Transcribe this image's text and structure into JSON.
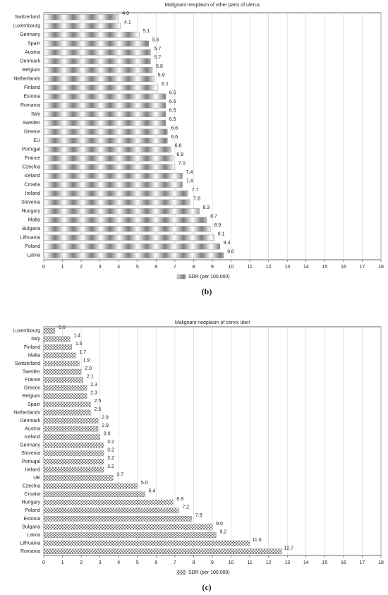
{
  "chart_data": [
    {
      "type": "bar",
      "orientation": "horizontal",
      "title": "Malignant neoplasm of other parts of uterus",
      "panel_label": "(b)",
      "categories": [
        "Switzerland",
        "Luxembourg",
        "Germany",
        "Spain",
        "Austria",
        "Denmark",
        "Belgium",
        "Netherlands",
        "Finland",
        "Estonia",
        "Romania",
        "Italy",
        "Sweden",
        "Greece",
        "EU",
        "Portugal",
        "France",
        "Czechia",
        "Iceland",
        "Croatia",
        "Ireland",
        "Slovenia",
        "Hungary",
        "Malta",
        "Bulgaria",
        "Lithuania",
        "Poland",
        "Latvia"
      ],
      "series": [
        {
          "name": "SDR (per 100,000)",
          "color": "#808080",
          "pattern": "gradient",
          "values": [
            4.0,
            4.1,
            5.1,
            5.6,
            5.7,
            5.7,
            5.8,
            5.9,
            6.1,
            6.5,
            6.5,
            6.5,
            6.5,
            6.6,
            6.6,
            6.8,
            6.9,
            7.0,
            7.4,
            7.4,
            7.7,
            7.8,
            8.3,
            8.7,
            8.9,
            9.1,
            9.4,
            9.6
          ],
          "value_labels": [
            "4.0",
            "4.1",
            "5.1",
            "5.6",
            "5.7",
            "5.7",
            "5.8",
            "5.9",
            "6.1",
            "6.5",
            "6.5",
            "6.5",
            "6.5",
            "6.6",
            "6.6",
            "6.8",
            "6.9",
            "7.0",
            "7.4",
            "7.4",
            "7.7",
            "7.8",
            "8.3",
            "8.7",
            "8.9",
            "9.1",
            "9.4",
            "9.6"
          ]
        }
      ],
      "xlim": [
        0,
        18
      ],
      "xticks": [
        0,
        1,
        2,
        3,
        4,
        5,
        6,
        7,
        8,
        9,
        10,
        11,
        12,
        13,
        14,
        15,
        16,
        17,
        18
      ],
      "grid": true
    },
    {
      "type": "bar",
      "orientation": "horizontal",
      "title": "Malignant neoplasm of cervix uteri",
      "panel_label": "(c)",
      "categories": [
        "Luxembourg",
        "Italy",
        "Finland",
        "Malta",
        "Switzerland",
        "Sweden",
        "France",
        "Greece",
        "Belgium",
        "Spain",
        "Netherlands",
        "Denmark",
        "Austria",
        "Iceland",
        "Germany",
        "Slovenia",
        "Portugal",
        "Ireland",
        "UE",
        "Czechia",
        "Croatia",
        "Hungary",
        "Poland",
        "Estonia",
        "Bulgaria",
        "Latvia",
        "Lithuania",
        "Romania"
      ],
      "series": [
        {
          "name": "SDR (per 100,000)",
          "color": "#808080",
          "pattern": "checker",
          "values": [
            0.6,
            1.4,
            1.5,
            1.7,
            1.9,
            2.0,
            2.1,
            2.3,
            2.3,
            2.5,
            2.5,
            2.9,
            2.9,
            3.0,
            3.2,
            3.2,
            3.2,
            3.2,
            3.7,
            5.0,
            5.4,
            6.9,
            7.2,
            7.9,
            9.0,
            9.2,
            11.0,
            12.7
          ],
          "value_labels": [
            "0.6",
            "1.4",
            "1.5",
            "1.7",
            "1.9",
            "2.0",
            "2.1",
            "2.3",
            "2.3",
            "2.5",
            "2.5",
            "2.9",
            "2.9",
            "3.0",
            "3.2",
            "3.2",
            "3.2",
            "3.2",
            "3.7",
            "5.0",
            "5.4",
            "6.9",
            "7.2",
            "7.9",
            "9.0",
            "9.2",
            "11.0",
            "12.7"
          ]
        }
      ],
      "xlim": [
        0,
        18
      ],
      "xticks": [
        0,
        1,
        2,
        3,
        4,
        5,
        6,
        7,
        8,
        9,
        10,
        11,
        12,
        13,
        14,
        15,
        16,
        17,
        18
      ],
      "grid": true
    }
  ]
}
